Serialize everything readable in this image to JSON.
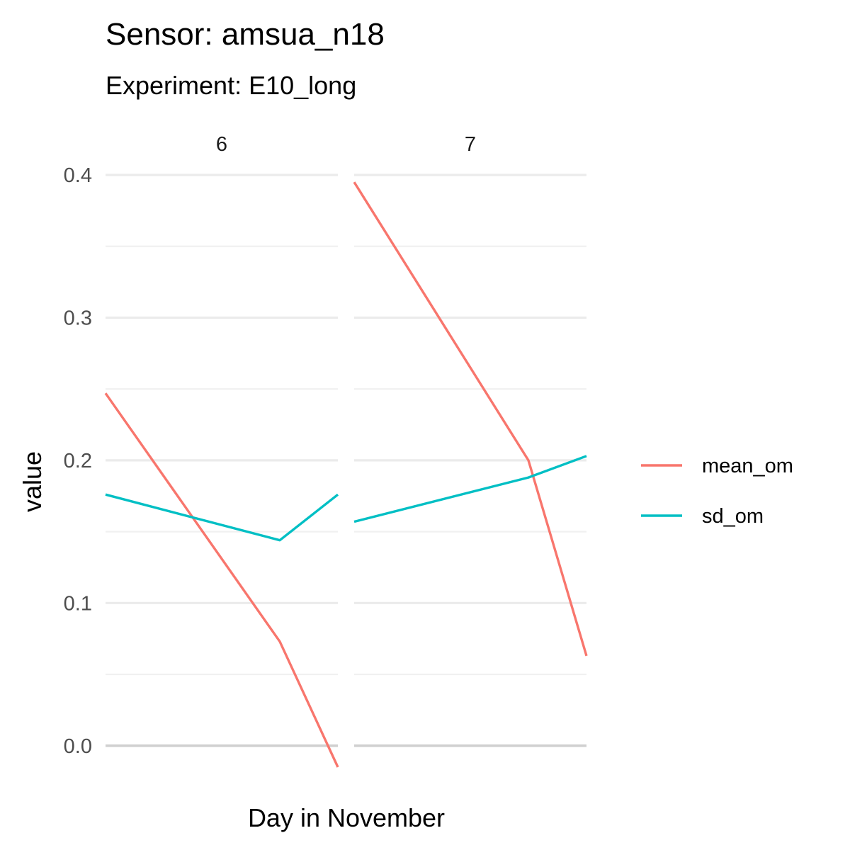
{
  "chart_data": {
    "type": "line",
    "title": "Sensor: amsua_n18",
    "subtitle": "Experiment: E10_long",
    "xlabel": "Day in November",
    "ylabel": "value",
    "ylim": [
      -0.015,
      0.4
    ],
    "yticks": [
      "0.0",
      "0.1",
      "0.2",
      "0.3",
      "0.4"
    ],
    "ytick_values": [
      0.0,
      0.1,
      0.2,
      0.3,
      0.4
    ],
    "yminor_values": [
      0.05,
      0.15,
      0.25,
      0.35
    ],
    "x_grid": false,
    "y_grid": true,
    "legend_position": "right",
    "colors": {
      "mean_om": "#F8766D",
      "sd_om": "#00BFC4"
    },
    "panels": [
      {
        "label": "6",
        "xlim": [
          0,
          24
        ],
        "series": [
          {
            "name": "mean_om",
            "x": [
              0,
              18,
              24
            ],
            "y": [
              0.247,
              0.073,
              -0.015
            ]
          },
          {
            "name": "sd_om",
            "x": [
              0,
              18,
              24
            ],
            "y": [
              0.176,
              0.144,
              0.176
            ]
          }
        ]
      },
      {
        "label": "7",
        "xlim": [
          0,
          24
        ],
        "series": [
          {
            "name": "mean_om",
            "x": [
              0,
              18,
              24
            ],
            "y": [
              0.395,
              0.2,
              0.063
            ]
          },
          {
            "name": "sd_om",
            "x": [
              0,
              18,
              24
            ],
            "y": [
              0.157,
              0.188,
              0.203
            ]
          }
        ]
      }
    ],
    "legend": [
      {
        "name": "mean_om"
      },
      {
        "name": "sd_om"
      }
    ]
  }
}
